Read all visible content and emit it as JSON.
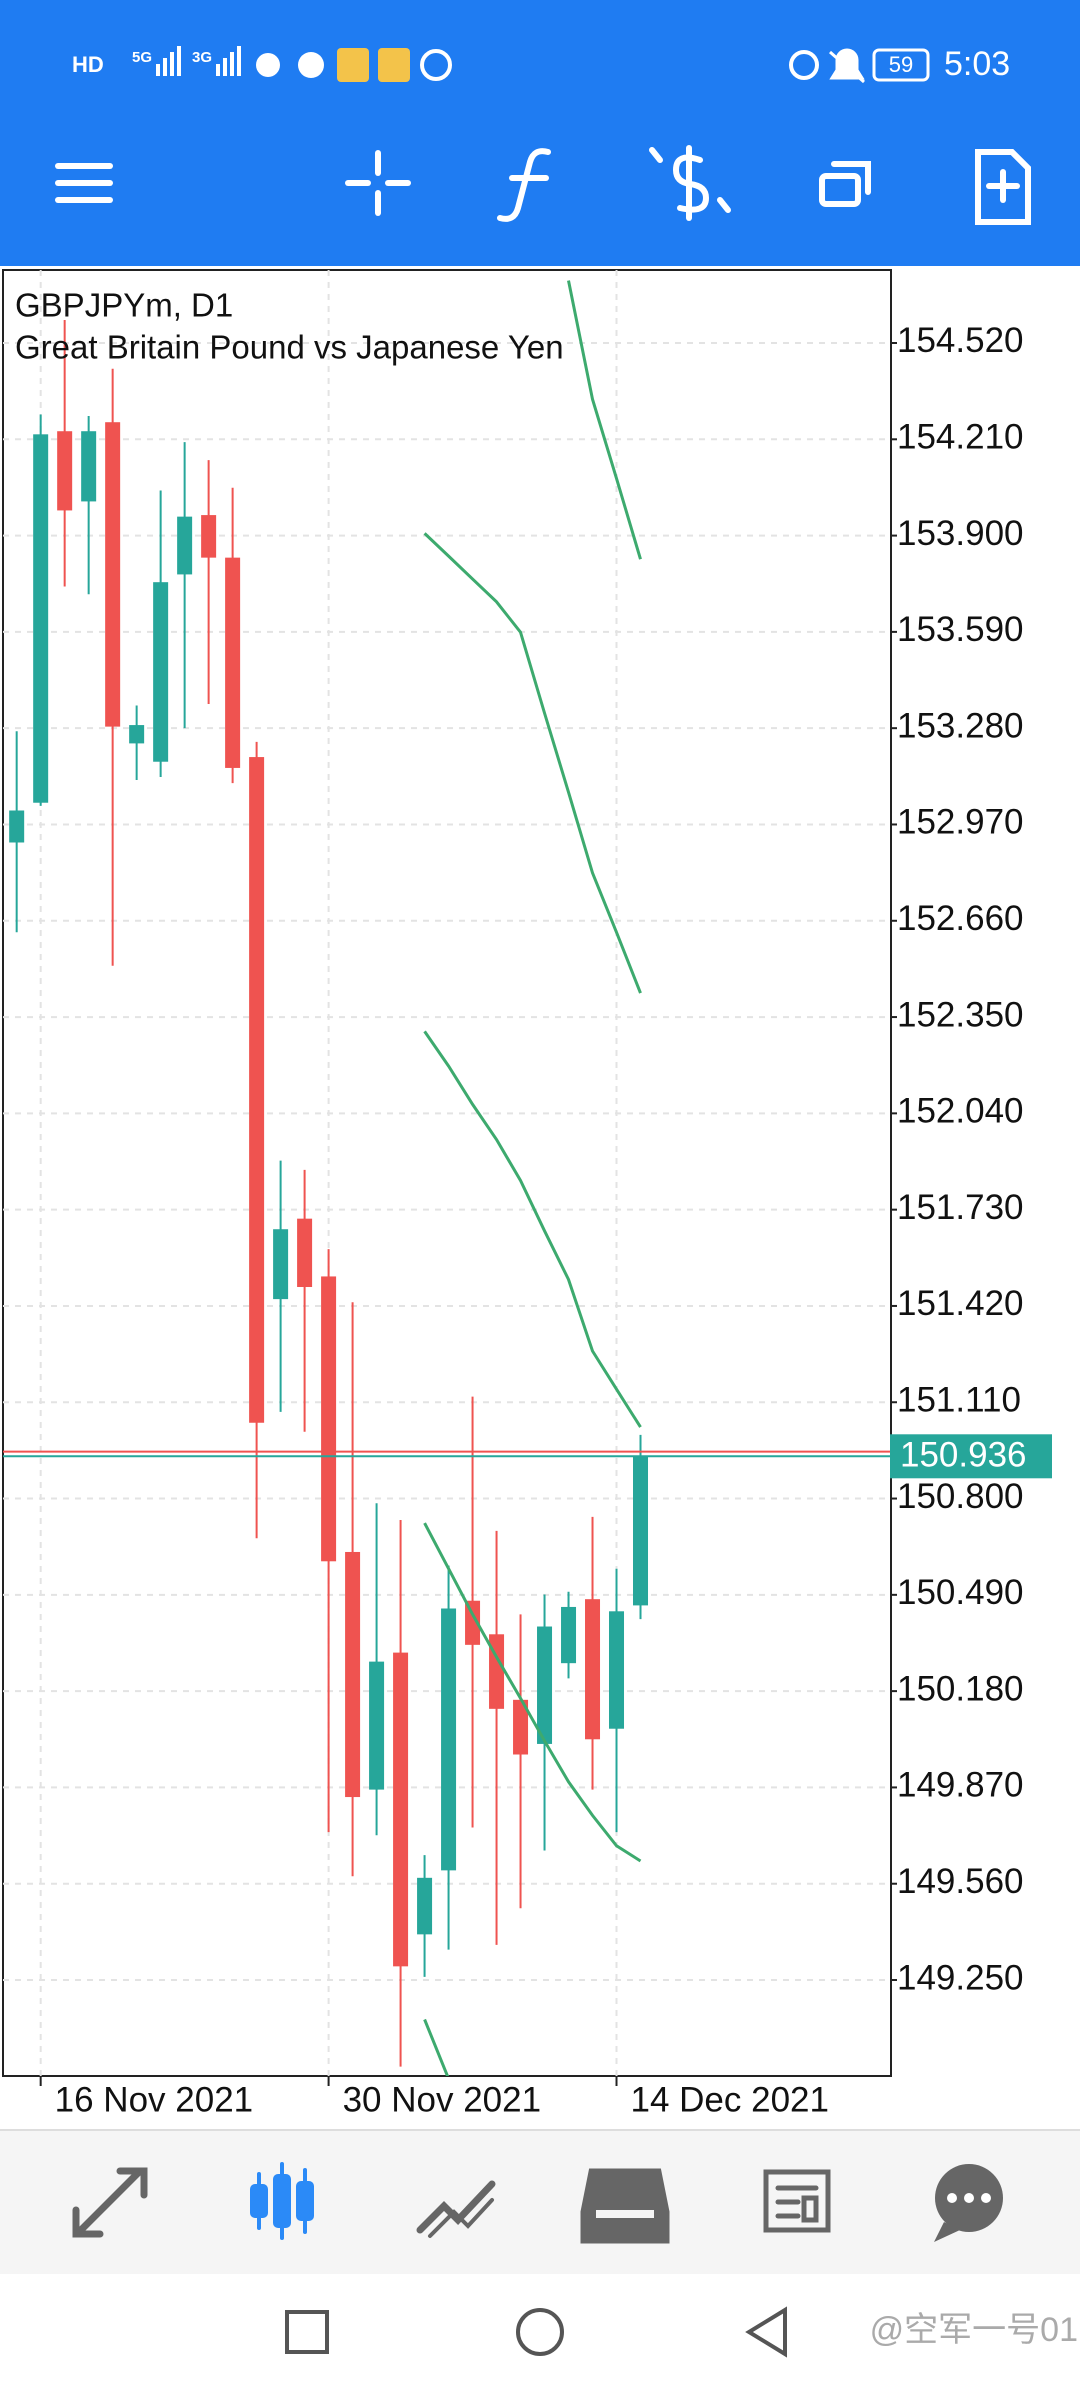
{
  "status_bar": {
    "network": [
      "HD",
      "5G",
      "3G"
    ],
    "battery": "59",
    "time": "5:03"
  },
  "chart_data": {
    "type": "candlestick",
    "title": "GBPJPYm, D1",
    "subtitle": "Great Britain Pound vs Japanese Yen",
    "up_color": "#26a69a",
    "down_color": "#ef5350",
    "open": [
      152.912,
      153.04,
      154.236,
      154.01,
      154.265,
      153.231,
      153.172,
      153.775,
      153.966,
      153.829,
      153.187,
      151.442,
      151.701,
      151.515,
      150.628,
      149.863,
      150.304,
      149.397,
      149.603,
      150.471,
      150.363,
      150.152,
      150.01,
      150.27,
      150.476,
      150.059,
      150.456
    ],
    "high": [
      153.27,
      154.29,
      154.594,
      154.285,
      154.437,
      153.353,
      154.045,
      154.201,
      154.143,
      154.054,
      153.236,
      151.888,
      151.858,
      151.603,
      151.432,
      150.785,
      150.731,
      149.652,
      150.584,
      151.128,
      150.696,
      150.427,
      150.491,
      150.5,
      150.741,
      150.574,
      151.005
    ],
    "low": [
      152.623,
      153.03,
      153.736,
      153.711,
      152.515,
      153.113,
      153.123,
      153.28,
      153.358,
      153.103,
      150.672,
      151.079,
      151.015,
      149.726,
      149.584,
      149.716,
      148.971,
      149.26,
      149.348,
      149.741,
      149.363,
      149.481,
      149.667,
      150.221,
      149.863,
      149.726,
      150.412
    ],
    "close": [
      153.015,
      154.226,
      153.981,
      154.236,
      153.285,
      153.29,
      153.75,
      153.961,
      153.829,
      153.152,
      151.044,
      151.667,
      151.481,
      150.598,
      149.839,
      150.275,
      149.294,
      149.579,
      150.446,
      150.329,
      150.123,
      149.976,
      150.388,
      150.451,
      150.025,
      150.437,
      150.936
    ],
    "lines": [
      {
        "color": "#3daa6e",
        "values": [
          null,
          null,
          null,
          null,
          null,
          null,
          null,
          null,
          null,
          null,
          null,
          null,
          null,
          null,
          null,
          null,
          null,
          null,
          null,
          null,
          null,
          null,
          null,
          154.721,
          154.339,
          154.084,
          153.824
        ]
      },
      {
        "color": "#3daa6e",
        "values": [
          null,
          null,
          null,
          null,
          null,
          null,
          null,
          null,
          null,
          null,
          null,
          null,
          null,
          null,
          null,
          null,
          null,
          153.907,
          153.834,
          153.76,
          153.687,
          153.589,
          153.329,
          153.074,
          152.814,
          152.623,
          152.427
        ]
      },
      {
        "color": "#3daa6e",
        "values": [
          null,
          null,
          null,
          null,
          null,
          null,
          null,
          null,
          null,
          null,
          null,
          null,
          null,
          null,
          null,
          null,
          null,
          152.304,
          152.192,
          152.069,
          151.956,
          151.824,
          151.662,
          151.505,
          151.275,
          151.152,
          151.03
        ]
      },
      {
        "color": "#3daa6e",
        "values": [
          null,
          null,
          null,
          null,
          null,
          null,
          null,
          null,
          null,
          null,
          null,
          null,
          null,
          null,
          null,
          null,
          null,
          150.721,
          150.574,
          150.427,
          150.29,
          150.157,
          150.02,
          149.888,
          149.78,
          149.682,
          149.633
        ]
      },
      {
        "color": "#3daa6e",
        "values": [
          null,
          null,
          null,
          null,
          null,
          null,
          null,
          null,
          null,
          null,
          null,
          null,
          null,
          null,
          null,
          null,
          null,
          149.123,
          148.932,
          null,
          null,
          null,
          null,
          null,
          null,
          null,
          null
        ]
      }
    ],
    "price_lines": [
      {
        "value": 150.951,
        "color": "#ef5350"
      },
      {
        "value": 150.936,
        "color": "#26a69a",
        "boxed": true
      }
    ],
    "ylim": [
      148.941,
      154.755
    ],
    "yticks": [
      {
        "value": 154.52,
        "label": "154.520"
      },
      {
        "value": 154.21,
        "label": "154.210"
      },
      {
        "value": 153.9,
        "label": "153.900"
      },
      {
        "value": 153.59,
        "label": "153.590"
      },
      {
        "value": 153.28,
        "label": "153.280"
      },
      {
        "value": 152.97,
        "label": "152.970"
      },
      {
        "value": 152.66,
        "label": "152.660"
      },
      {
        "value": 152.35,
        "label": "152.350"
      },
      {
        "value": 152.04,
        "label": "152.040"
      },
      {
        "value": 151.73,
        "label": "151.730"
      },
      {
        "value": 151.42,
        "label": "151.420"
      },
      {
        "value": 151.11,
        "label": "151.110"
      },
      {
        "value": 150.8,
        "label": "150.800"
      },
      {
        "value": 150.49,
        "label": "150.490"
      },
      {
        "value": 150.18,
        "label": "150.180"
      },
      {
        "value": 149.87,
        "label": "149.870"
      },
      {
        "value": 149.56,
        "label": "149.560"
      },
      {
        "value": 149.25,
        "label": "149.250"
      }
    ],
    "xlim": [
      -0.57,
      36.44
    ],
    "xticks": [
      {
        "value": 1,
        "label": "16 Nov 2021"
      },
      {
        "value": 13,
        "label": "30 Nov 2021"
      },
      {
        "value": 25,
        "label": "14 Dec 2021"
      }
    ],
    "grid": true
  },
  "watermark": "@空军一号01"
}
